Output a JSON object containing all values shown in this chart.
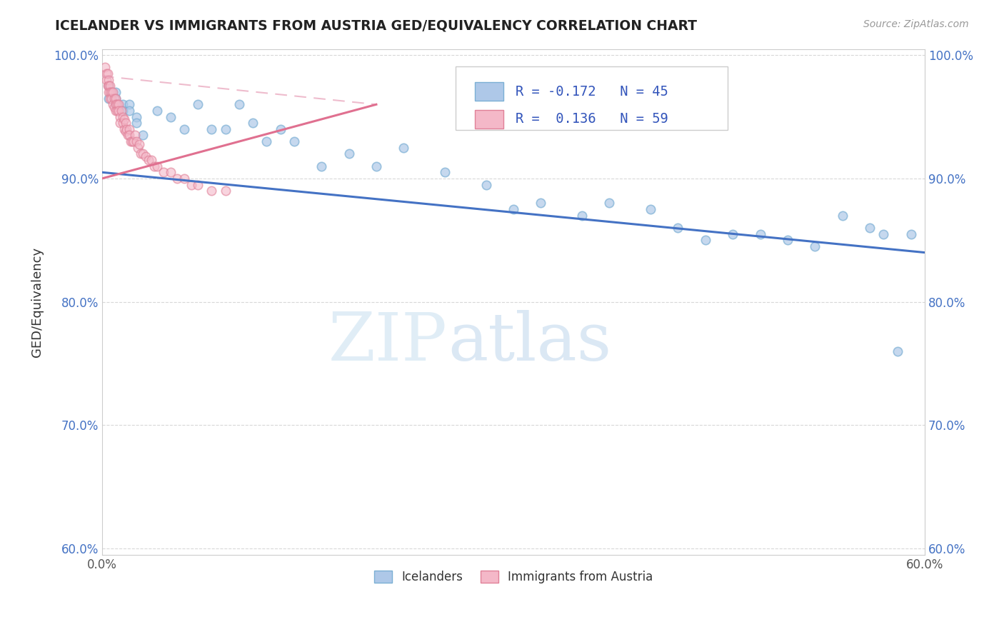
{
  "title": "ICELANDER VS IMMIGRANTS FROM AUSTRIA GED/EQUIVALENCY CORRELATION CHART",
  "source": "Source: ZipAtlas.com",
  "ylabel": "GED/Equivalency",
  "xlim": [
    0.0,
    0.6
  ],
  "ylim": [
    0.595,
    1.005
  ],
  "x_ticks": [
    0.0,
    0.1,
    0.2,
    0.3,
    0.4,
    0.5,
    0.6
  ],
  "x_tick_labels": [
    "0.0%",
    "",
    "",
    "",
    "",
    "",
    "60.0%"
  ],
  "y_ticks": [
    0.6,
    0.7,
    0.8,
    0.9,
    1.0
  ],
  "y_tick_labels": [
    "60.0%",
    "70.0%",
    "80.0%",
    "90.0%",
    "100.0%"
  ],
  "legend_labels": [
    "Icelanders",
    "Immigrants from Austria"
  ],
  "blue_color": "#aec8e8",
  "blue_edge_color": "#7bafd4",
  "pink_color": "#f4b8c8",
  "pink_edge_color": "#e08098",
  "blue_line_color": "#4472c4",
  "pink_line_color": "#e07090",
  "pink_dashed_color": "#e8a0b8",
  "R_blue": -0.172,
  "N_blue": 45,
  "R_pink": 0.136,
  "N_pink": 59,
  "blue_scatter_x": [
    0.005,
    0.005,
    0.01,
    0.01,
    0.01,
    0.015,
    0.015,
    0.02,
    0.02,
    0.025,
    0.025,
    0.03,
    0.04,
    0.05,
    0.06,
    0.07,
    0.08,
    0.09,
    0.1,
    0.11,
    0.12,
    0.13,
    0.14,
    0.16,
    0.18,
    0.2,
    0.22,
    0.25,
    0.28,
    0.3,
    0.32,
    0.35,
    0.37,
    0.4,
    0.42,
    0.44,
    0.46,
    0.48,
    0.5,
    0.52,
    0.54,
    0.56,
    0.57,
    0.58,
    0.59
  ],
  "blue_scatter_y": [
    0.965,
    0.975,
    0.97,
    0.965,
    0.96,
    0.96,
    0.955,
    0.96,
    0.955,
    0.95,
    0.945,
    0.935,
    0.955,
    0.95,
    0.94,
    0.96,
    0.94,
    0.94,
    0.96,
    0.945,
    0.93,
    0.94,
    0.93,
    0.91,
    0.92,
    0.91,
    0.925,
    0.905,
    0.895,
    0.875,
    0.88,
    0.87,
    0.88,
    0.875,
    0.86,
    0.85,
    0.855,
    0.855,
    0.85,
    0.845,
    0.87,
    0.86,
    0.855,
    0.76,
    0.855
  ],
  "pink_scatter_x": [
    0.002,
    0.003,
    0.003,
    0.004,
    0.004,
    0.005,
    0.005,
    0.005,
    0.006,
    0.006,
    0.006,
    0.007,
    0.007,
    0.008,
    0.008,
    0.009,
    0.009,
    0.01,
    0.01,
    0.01,
    0.011,
    0.011,
    0.012,
    0.012,
    0.013,
    0.013,
    0.014,
    0.015,
    0.015,
    0.016,
    0.016,
    0.017,
    0.017,
    0.018,
    0.019,
    0.02,
    0.02,
    0.021,
    0.022,
    0.023,
    0.024,
    0.025,
    0.026,
    0.027,
    0.028,
    0.03,
    0.032,
    0.034,
    0.036,
    0.038,
    0.04,
    0.045,
    0.05,
    0.055,
    0.06,
    0.065,
    0.07,
    0.08,
    0.09
  ],
  "pink_scatter_y": [
    0.99,
    0.985,
    0.98,
    0.985,
    0.975,
    0.98,
    0.975,
    0.97,
    0.975,
    0.97,
    0.965,
    0.97,
    0.965,
    0.97,
    0.96,
    0.965,
    0.958,
    0.965,
    0.96,
    0.955,
    0.96,
    0.955,
    0.96,
    0.955,
    0.95,
    0.945,
    0.955,
    0.95,
    0.945,
    0.948,
    0.94,
    0.945,
    0.938,
    0.94,
    0.935,
    0.94,
    0.935,
    0.93,
    0.93,
    0.93,
    0.935,
    0.93,
    0.925,
    0.928,
    0.92,
    0.92,
    0.918,
    0.915,
    0.915,
    0.91,
    0.91,
    0.905,
    0.905,
    0.9,
    0.9,
    0.895,
    0.895,
    0.89,
    0.89
  ],
  "watermark_zip": "ZIP",
  "watermark_atlas": "atlas",
  "background_color": "#ffffff",
  "grid_color": "#d8d8d8"
}
